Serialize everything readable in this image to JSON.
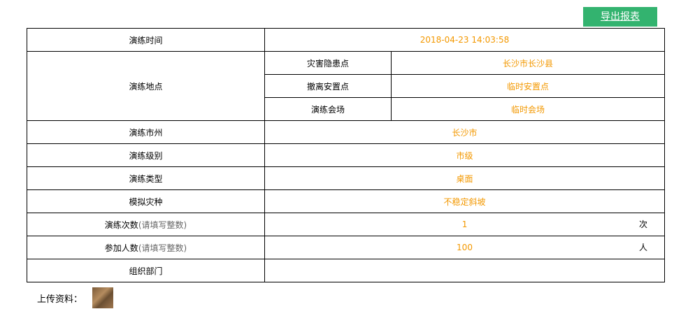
{
  "toolbar": {
    "export_label": "导出报表",
    "button_color": "#33b36f"
  },
  "value_color": "#f39800",
  "rows": {
    "time": {
      "label": "演练时间",
      "value": "2018-04-23 14:03:58"
    },
    "location": {
      "label": "演练地点",
      "items": [
        {
          "label": "灾害隐患点",
          "value": "长沙市长沙县"
        },
        {
          "label": "撤离安置点",
          "value": "临时安置点"
        },
        {
          "label": "演练会场",
          "value": "临时会场"
        }
      ]
    },
    "city": {
      "label": "演练市州",
      "value": "长沙市"
    },
    "level": {
      "label": "演练级别",
      "value": "市级"
    },
    "type": {
      "label": "演练类型",
      "value": "桌面"
    },
    "disaster": {
      "label": "模拟灾种",
      "value": "不稳定斜坡"
    },
    "count": {
      "label": "演练次数",
      "hint": "(请填写整数)",
      "value": "1",
      "unit": "次"
    },
    "people": {
      "label": "参加人数",
      "hint": "(请填写整数)",
      "value": "100",
      "unit": "人"
    },
    "dept": {
      "label": "组织部门",
      "value": ""
    }
  },
  "upload": {
    "label": "上传资料："
  }
}
